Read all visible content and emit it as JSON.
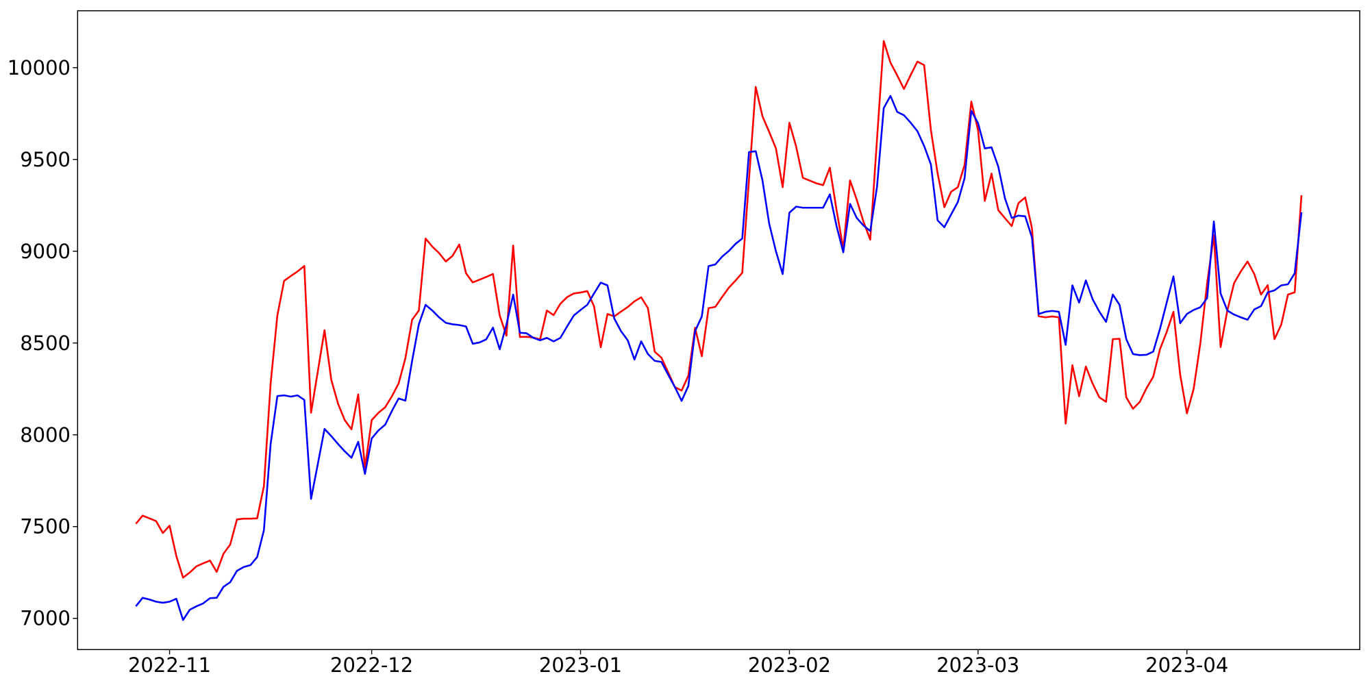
{
  "figure": {
    "background": "#ffffff",
    "title": "",
    "legend": "none",
    "grid": false
  },
  "chart_data": {
    "type": "line",
    "title": "",
    "xlabel": "",
    "ylabel": "",
    "start_date": "2022-10-27",
    "frequency": "daily",
    "x_ticks": [
      {
        "label": "2022-11",
        "day_index": 5
      },
      {
        "label": "2022-12",
        "day_index": 35
      },
      {
        "label": "2023-01",
        "day_index": 66
      },
      {
        "label": "2023-02",
        "day_index": 97
      },
      {
        "label": "2023-03",
        "day_index": 125
      },
      {
        "label": "2023-04",
        "day_index": 156
      }
    ],
    "y_ticks": [
      7000,
      7500,
      8000,
      8500,
      9000,
      9500,
      10000
    ],
    "xlim_day_index": [
      -8.65,
      181.65
    ],
    "ylim": [
      6830,
      10310
    ],
    "grid": false,
    "legend_position": "none",
    "series": [
      {
        "name": "series-red",
        "color": "#ff0000",
        "line_width": 2.6,
        "values": [
          7515,
          7560,
          7545,
          7530,
          7465,
          7505,
          7340,
          7222,
          7250,
          7284,
          7300,
          7315,
          7253,
          7352,
          7402,
          7539,
          7543,
          7543,
          7545,
          7720,
          8280,
          8650,
          8839,
          8865,
          8890,
          8920,
          8120,
          8345,
          8570,
          8300,
          8170,
          8080,
          8030,
          8220,
          7820,
          8080,
          8120,
          8150,
          8210,
          8280,
          8417,
          8627,
          8677,
          9069,
          9025,
          8990,
          8944,
          8975,
          9037,
          8880,
          8830,
          8845,
          8860,
          8876,
          8650,
          8540,
          9031,
          8533,
          8534,
          8530,
          8520,
          8677,
          8652,
          8714,
          8750,
          8770,
          8775,
          8783,
          8700,
          8477,
          8658,
          8645,
          8671,
          8696,
          8727,
          8749,
          8690,
          8453,
          8420,
          8341,
          8260,
          8241,
          8322,
          8583,
          8428,
          8690,
          8697,
          8750,
          8801,
          8840,
          8882,
          9390,
          9895,
          9735,
          9650,
          9560,
          9349,
          9700,
          9570,
          9400,
          9385,
          9370,
          9360,
          9455,
          9224,
          9013,
          9386,
          9280,
          9160,
          9063,
          9610,
          10145,
          10027,
          9958,
          9884,
          9960,
          10033,
          10014,
          9660,
          9424,
          9240,
          9324,
          9349,
          9470,
          9815,
          9660,
          9274,
          9423,
          9224,
          9180,
          9137,
          9262,
          9293,
          9125,
          8646,
          8640,
          8645,
          8640,
          8061,
          8379,
          8210,
          8372,
          8279,
          8204,
          8180,
          8521,
          8523,
          8204,
          8142,
          8179,
          8254,
          8316,
          8466,
          8560,
          8670,
          8328,
          8117,
          8250,
          8500,
          8826,
          9087,
          8478,
          8677,
          8826,
          8890,
          8944,
          8876,
          8764,
          8815,
          8521,
          8600,
          8764,
          8776,
          9305
        ]
      },
      {
        "name": "series-blue",
        "color": "#0000ff",
        "line_width": 2.6,
        "values": [
          7066,
          7112,
          7103,
          7091,
          7085,
          7091,
          7107,
          6991,
          7047,
          7066,
          7082,
          7110,
          7112,
          7172,
          7197,
          7259,
          7280,
          7290,
          7334,
          7480,
          7950,
          8211,
          8215,
          8208,
          8215,
          8190,
          7651,
          7840,
          8032,
          7993,
          7950,
          7910,
          7875,
          7962,
          7787,
          7980,
          8024,
          8055,
          8130,
          8198,
          8186,
          8403,
          8602,
          8708,
          8677,
          8640,
          8610,
          8602,
          8598,
          8590,
          8496,
          8503,
          8520,
          8584,
          8466,
          8600,
          8764,
          8556,
          8553,
          8528,
          8515,
          8528,
          8509,
          8528,
          8590,
          8650,
          8680,
          8708,
          8770,
          8829,
          8814,
          8634,
          8565,
          8515,
          8410,
          8509,
          8440,
          8403,
          8397,
          8328,
          8260,
          8185,
          8266,
          8565,
          8645,
          8919,
          8928,
          8970,
          9001,
          9040,
          9069,
          9540,
          9545,
          9386,
          9150,
          9000,
          8876,
          9210,
          9243,
          9237,
          9237,
          9237,
          9237,
          9310,
          9137,
          8994,
          9258,
          9181,
          9140,
          9110,
          9350,
          9780,
          9846,
          9759,
          9741,
          9700,
          9654,
          9573,
          9473,
          9168,
          9131,
          9200,
          9268,
          9398,
          9765,
          9698,
          9560,
          9566,
          9461,
          9287,
          9181,
          9194,
          9190,
          9075,
          8658,
          8670,
          8675,
          8670,
          8490,
          8814,
          8720,
          8841,
          8739,
          8671,
          8615,
          8764,
          8708,
          8521,
          8440,
          8434,
          8436,
          8453,
          8577,
          8720,
          8863,
          8608,
          8658,
          8680,
          8695,
          8745,
          9162,
          8770,
          8677,
          8655,
          8640,
          8627,
          8683,
          8701,
          8776,
          8787,
          8814,
          8820,
          8880,
          9212
        ]
      }
    ]
  }
}
